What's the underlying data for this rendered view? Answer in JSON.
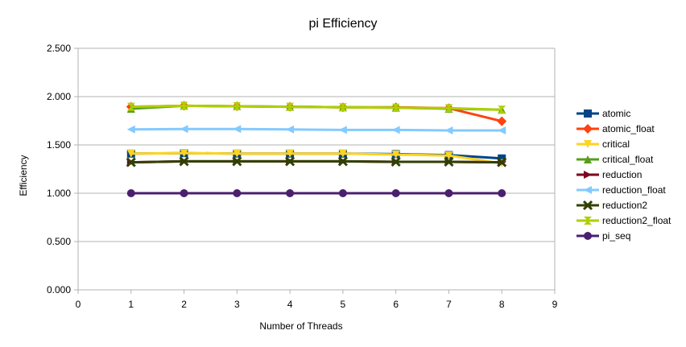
{
  "chart_data": {
    "type": "line",
    "title": "pi Efficiency",
    "xlabel": "Number of Threads",
    "ylabel": "Efficiency",
    "xlim": [
      0,
      9
    ],
    "ylim": [
      0,
      2.5
    ],
    "x_ticks": [
      "0",
      "1",
      "2",
      "3",
      "4",
      "5",
      "6",
      "7",
      "8",
      "9"
    ],
    "y_ticks": [
      "0.000",
      "0.500",
      "1.000",
      "1.500",
      "2.000",
      "2.500"
    ],
    "grid": "horizontal",
    "legend_position": "right",
    "x": [
      1,
      2,
      3,
      4,
      5,
      6,
      7,
      8
    ],
    "series": [
      {
        "name": "atomic",
        "color": "#004586",
        "marker": "square",
        "values": [
          1.41,
          1.415,
          1.41,
          1.41,
          1.41,
          1.405,
          1.395,
          1.36
        ]
      },
      {
        "name": "atomic_float",
        "color": "#ff420e",
        "marker": "diamond",
        "values": [
          1.895,
          1.905,
          1.9,
          1.895,
          1.89,
          1.89,
          1.88,
          1.745
        ]
      },
      {
        "name": "critical",
        "color": "#ffd320",
        "marker": "triangle-down",
        "values": [
          1.41,
          1.415,
          1.41,
          1.41,
          1.41,
          1.4,
          1.39,
          1.31
        ]
      },
      {
        "name": "critical_float",
        "color": "#579d1c",
        "marker": "triangle-up",
        "values": [
          1.875,
          1.905,
          1.9,
          1.895,
          1.89,
          1.885,
          1.875,
          1.865
        ]
      },
      {
        "name": "reduction",
        "color": "#7e0021",
        "marker": "triangle-right",
        "values": [
          1.32,
          1.33,
          1.33,
          1.33,
          1.33,
          1.325,
          1.325,
          1.32
        ]
      },
      {
        "name": "reduction_float",
        "color": "#83caff",
        "marker": "triangle-left",
        "values": [
          1.66,
          1.665,
          1.665,
          1.66,
          1.655,
          1.655,
          1.65,
          1.65
        ]
      },
      {
        "name": "reduction2",
        "color": "#314004",
        "marker": "x",
        "values": [
          1.32,
          1.33,
          1.33,
          1.33,
          1.33,
          1.325,
          1.325,
          1.32
        ]
      },
      {
        "name": "reduction2_float",
        "color": "#aecf00",
        "marker": "hourglass",
        "values": [
          1.895,
          1.905,
          1.9,
          1.895,
          1.89,
          1.885,
          1.88,
          1.865
        ]
      },
      {
        "name": "pi_seq",
        "color": "#4b1f6f",
        "marker": "circle",
        "values": [
          1.0,
          1.0,
          1.0,
          1.0,
          1.0,
          1.0,
          1.0,
          1.0
        ]
      }
    ]
  }
}
